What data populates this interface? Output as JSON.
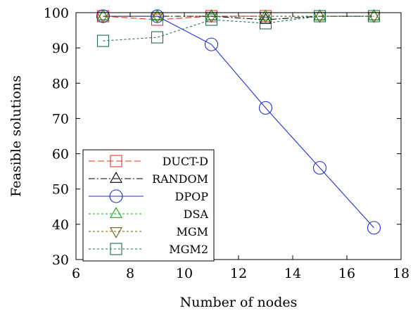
{
  "chart_data": {
    "type": "line",
    "xlabel": "Number of nodes",
    "ylabel": "Feasible solutions",
    "xlim": [
      6,
      18
    ],
    "ylim": [
      30,
      100
    ],
    "xticks": [
      6,
      8,
      10,
      12,
      14,
      16,
      18
    ],
    "yticks": [
      30,
      40,
      50,
      60,
      70,
      80,
      90,
      100
    ],
    "grid": false,
    "legend_position": "bottom-left",
    "series": [
      {
        "name": "DUCT-D",
        "color": "#e8312a",
        "dash": "dashed",
        "marker": "square",
        "x": [
          7,
          9,
          11,
          13
        ],
        "y": [
          99,
          98,
          99,
          99
        ]
      },
      {
        "name": "RANDOM",
        "color": "#000000",
        "dash": "dashdot",
        "marker": "triangle-up",
        "x": [
          7,
          9,
          11,
          13,
          15,
          17
        ],
        "y": [
          99,
          99,
          99,
          98,
          99,
          99
        ]
      },
      {
        "name": "DPOP",
        "color": "#1f2fd6",
        "dash": "solid",
        "marker": "circle",
        "x": [
          7,
          9,
          11,
          13,
          15,
          17
        ],
        "y": [
          99,
          99,
          91,
          73,
          56,
          39
        ]
      },
      {
        "name": "DSA",
        "color": "#1fa01f",
        "dash": "dotted",
        "marker": "triangle-up",
        "x": [
          7,
          9,
          11,
          13,
          15,
          17
        ],
        "y": [
          99,
          99,
          99,
          99,
          99,
          99
        ]
      },
      {
        "name": "MGM",
        "color": "#6b5a10",
        "dash": "dotted",
        "marker": "triangle-down",
        "x": [
          7,
          9,
          11,
          13,
          15,
          17
        ],
        "y": [
          99,
          99,
          99,
          99,
          99,
          99
        ]
      },
      {
        "name": "MGM2",
        "color": "#1e6b5a",
        "dash": "dotted",
        "marker": "square",
        "x": [
          7,
          9,
          11,
          13,
          15,
          17
        ],
        "y": [
          92,
          93,
          98,
          97,
          99,
          99
        ]
      }
    ]
  }
}
